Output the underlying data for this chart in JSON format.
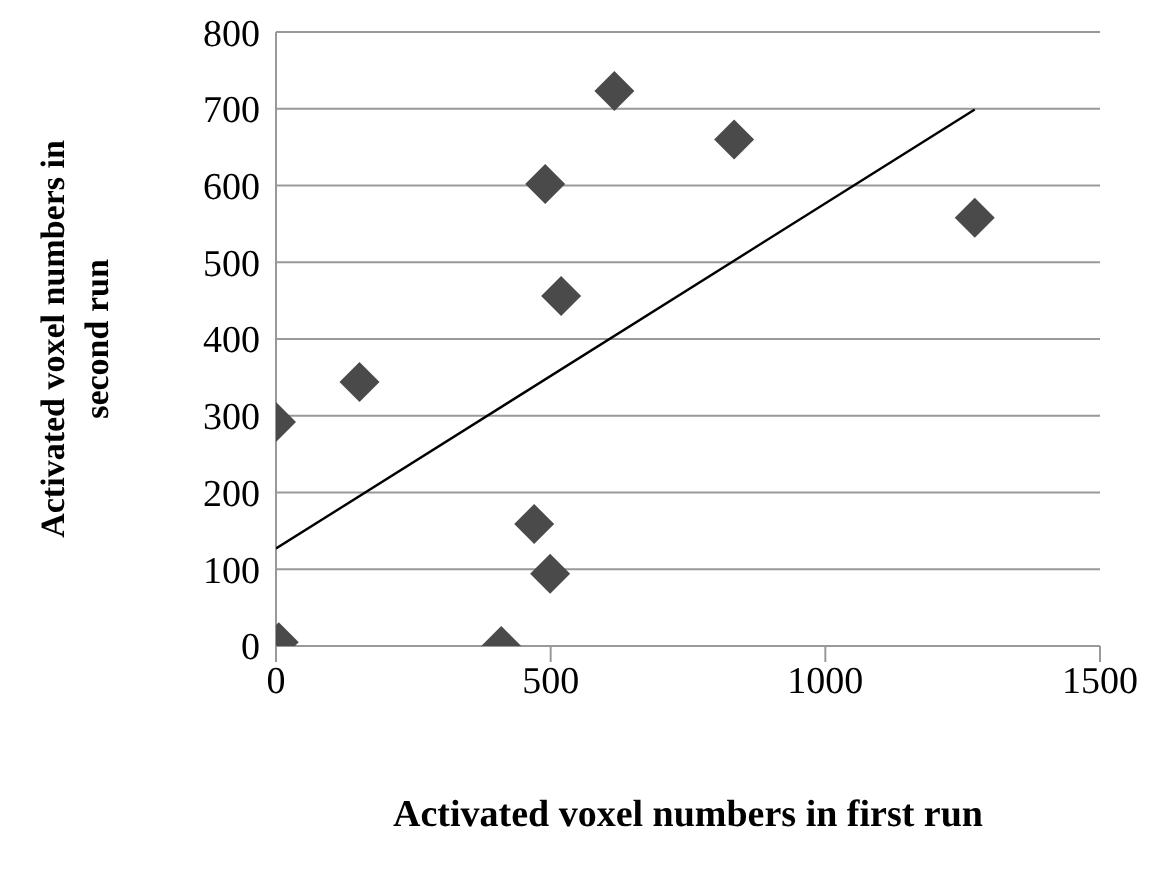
{
  "chart_data": {
    "type": "scatter",
    "xlabel": "Activated voxel numbers in first run",
    "ylabel": "Activated voxel numbers in second run",
    "xlim": [
      0,
      1500
    ],
    "xticks": [
      0,
      500,
      1000,
      1500
    ],
    "ylim": [
      0,
      800
    ],
    "yticks": [
      0,
      100,
      200,
      300,
      400,
      500,
      600,
      700,
      800
    ],
    "grid": "y",
    "series": [
      {
        "marker": "diamond",
        "color": "#4a4a4a",
        "x": [
          0,
          152,
          5,
          410,
          470,
          499,
          519,
          490,
          616,
          834,
          1272
        ],
        "values": [
          292,
          344,
          5,
          0,
          159,
          94,
          456,
          602,
          723,
          660,
          558
        ]
      },
      {
        "type": "line",
        "color": "#000000",
        "x": [
          0,
          1272
        ],
        "values": [
          127,
          699
        ]
      }
    ]
  }
}
